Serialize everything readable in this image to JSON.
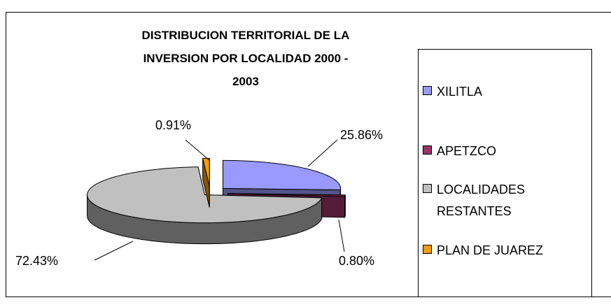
{
  "chart_data": {
    "type": "pie3d",
    "title": "DISTRIBUCION TERRITORIAL DE LA INVERSION POR LOCALIDAD 2000 - 2003",
    "categories": [
      "XILITLA",
      "APETZCO",
      "LOCALIDADES RESTANTES",
      "PLAN DE JUAREZ"
    ],
    "values": [
      25.86,
      0.8,
      72.43,
      0.91
    ],
    "value_labels": [
      "25.86%",
      "0.80%",
      "72.43%",
      "0.91%"
    ],
    "colors": [
      "#9999ff",
      "#993366",
      "#c0c0c0",
      "#ff9900"
    ],
    "legend": "right"
  }
}
